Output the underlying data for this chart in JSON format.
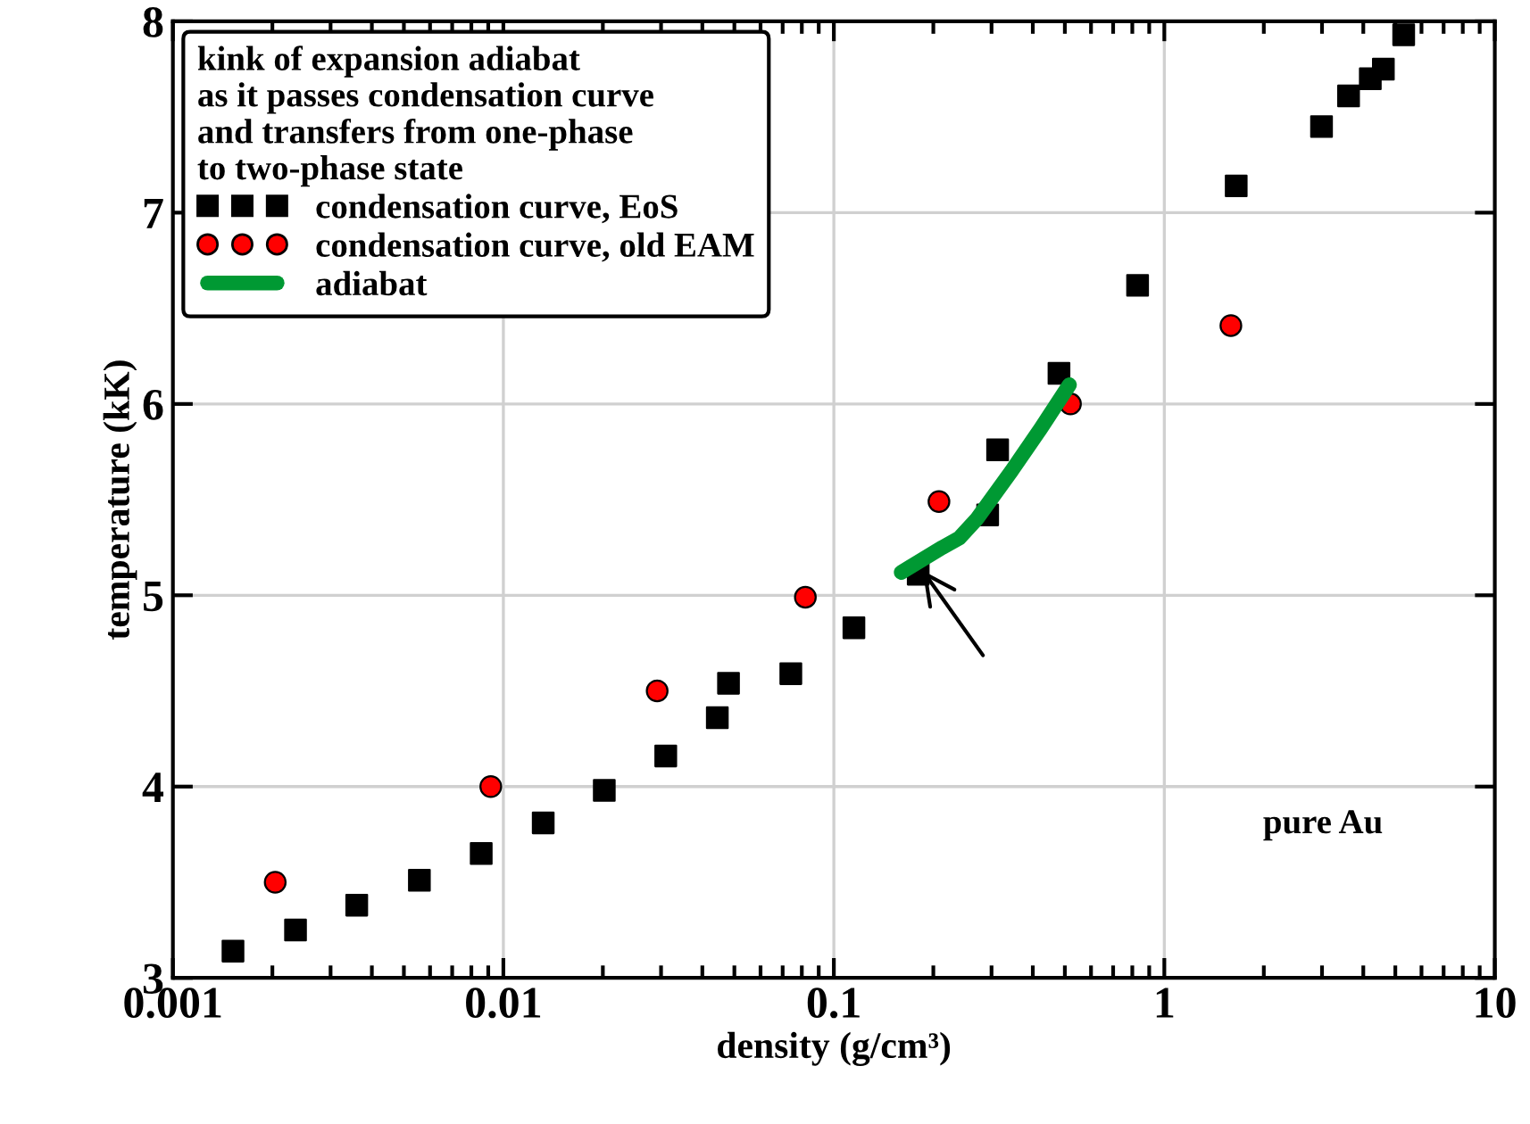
{
  "chart_data": {
    "type": "scatter",
    "xlabel": "density (g/cm³)",
    "ylabel": "temperature (kK)",
    "legend_title": "kink of expansion adiabat\nas it passes condensation curve\nand transfers from one-phase\nto two-phase state",
    "log": "x",
    "xlim": [
      0.001,
      10
    ],
    "xticks": [
      0.001,
      0.01,
      0.1,
      1,
      10
    ],
    "ylim": [
      3,
      8
    ],
    "yticks": [
      3,
      4,
      5,
      6,
      7,
      8
    ],
    "grid": true,
    "legend": "top left",
    "annotations": [
      "pure Au"
    ],
    "series": [
      {
        "name": "condensation curve, EoS",
        "marker": "square",
        "color": "#000000",
        "x": [
          0.00152,
          0.00235,
          0.0036,
          0.00557,
          0.00857,
          0.0132,
          0.0202,
          0.031,
          0.0444,
          0.048,
          0.0741,
          0.115,
          0.18,
          0.292,
          0.313,
          0.48,
          0.83,
          1.65,
          2.99,
          3.61,
          4.2,
          4.6,
          5.3
        ],
        "values": [
          3.14,
          3.25,
          3.38,
          3.51,
          3.65,
          3.81,
          3.98,
          4.16,
          4.36,
          4.54,
          4.59,
          4.83,
          5.11,
          5.42,
          5.76,
          6.16,
          6.62,
          7.14,
          7.45,
          7.61,
          7.7,
          7.75,
          7.93
        ]
      },
      {
        "name": "condensation curve, old EAM",
        "marker": "circle",
        "color": "#ff0000",
        "x": [
          0.00204,
          0.00916,
          0.0292,
          0.082,
          0.208,
          0.52,
          1.59
        ],
        "values": [
          3.5,
          4.0,
          4.5,
          4.99,
          5.49,
          6.0,
          6.41
        ]
      },
      {
        "name": "adiabat",
        "type": "line",
        "marker": "none",
        "line_style": "solid",
        "color": "#009933",
        "x": [
          0.16,
          0.213,
          0.24,
          0.271,
          0.345,
          0.422,
          0.516
        ],
        "values": [
          5.12,
          5.25,
          5.3,
          5.4,
          5.65,
          5.87,
          6.1
        ]
      }
    ]
  }
}
